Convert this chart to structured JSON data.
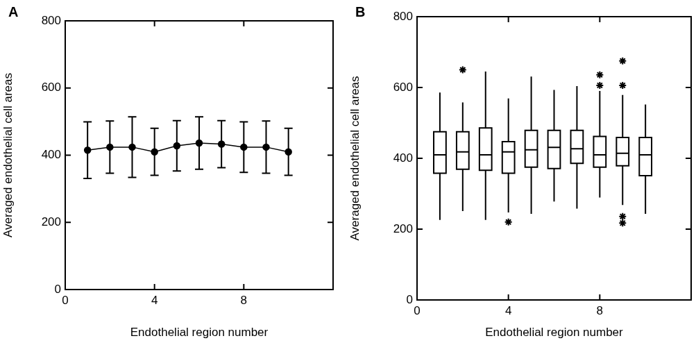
{
  "chart_data": [
    {
      "type": "line",
      "title": "A",
      "xlabel": "Endothelial region number",
      "ylabel": "Averaged endothelial cell areas",
      "x": [
        1,
        2,
        3,
        4,
        5,
        6,
        7,
        8,
        9,
        10
      ],
      "series": [
        {
          "color": "#000000",
          "values": [
            415,
            424,
            424,
            410,
            428,
            436,
            433,
            424,
            424,
            410
          ],
          "errors": [
            84,
            78,
            90,
            70,
            75,
            78,
            70,
            75,
            78,
            70
          ]
        }
      ],
      "marker": "circle",
      "line_style": "solid",
      "xlim": [
        0,
        12
      ],
      "xticks": [
        0,
        4,
        8
      ],
      "ylim": [
        0,
        800
      ],
      "yticks": [
        0,
        200,
        400,
        600,
        800
      ],
      "grid": false,
      "legend": false
    },
    {
      "type": "box",
      "title": "B",
      "xlabel": "Endothelial region number",
      "ylabel": "Averaged endothelial cell areas",
      "x": [
        1,
        2,
        3,
        4,
        5,
        6,
        7,
        8,
        9,
        10
      ],
      "series": [
        {
          "color": "#000000",
          "boxes": [
            {
              "low": 226,
              "q1": 358,
              "median": 410,
              "q3": 475,
              "high": 586
            },
            {
              "low": 251,
              "q1": 369,
              "median": 418,
              "q3": 475,
              "high": 558,
              "outliers": [
                650
              ]
            },
            {
              "low": 226,
              "q1": 366,
              "median": 410,
              "q3": 486,
              "high": 645
            },
            {
              "low": 247,
              "q1": 358,
              "median": 418,
              "q3": 447,
              "high": 569,
              "outliers": [
                220
              ]
            },
            {
              "low": 243,
              "q1": 375,
              "median": 424,
              "q3": 479,
              "high": 631
            },
            {
              "low": 278,
              "q1": 371,
              "median": 431,
              "q3": 479,
              "high": 593
            },
            {
              "low": 258,
              "q1": 386,
              "median": 427,
              "q3": 479,
              "high": 604
            },
            {
              "low": 289,
              "q1": 375,
              "median": 410,
              "q3": 462,
              "high": 590,
              "outliers": [
                636,
                606
              ]
            },
            {
              "low": 268,
              "q1": 379,
              "median": 414,
              "q3": 459,
              "high": 579,
              "outliers": [
                675,
                606,
                236,
                217
              ]
            },
            {
              "low": 243,
              "q1": 351,
              "median": 410,
              "q3": 459,
              "high": 552
            }
          ]
        }
      ],
      "xlim": [
        0,
        12
      ],
      "xticks": [
        0,
        4,
        8
      ],
      "ylim": [
        0,
        800
      ],
      "yticks": [
        0,
        200,
        400,
        600,
        800
      ],
      "grid": false,
      "legend": false
    }
  ]
}
